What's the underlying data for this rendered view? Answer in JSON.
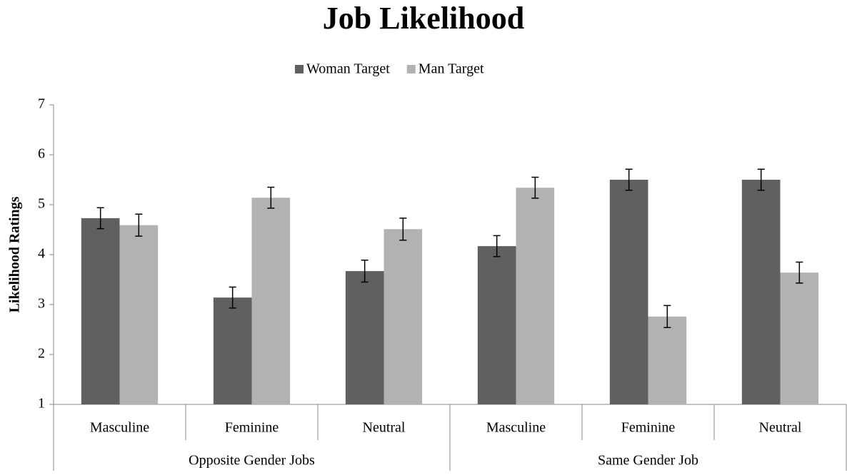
{
  "chart_data": {
    "type": "bar",
    "title": "Job Likelihood",
    "y_label": "Likelihood Ratings",
    "groups": [
      {
        "name": "Opposite Gender Jobs",
        "categories": [
          "Masculine",
          "Feminine",
          "Neutral"
        ]
      },
      {
        "name": "Same Gender Job",
        "categories": [
          "Masculine",
          "Feminine",
          "Neutral"
        ]
      }
    ],
    "series": [
      {
        "name": "Woman Target",
        "color": "#606060",
        "values": [
          4.73,
          3.14,
          3.67,
          4.17,
          5.5,
          5.5
        ],
        "errors": [
          0.21,
          0.21,
          0.22,
          0.21,
          0.21,
          0.21
        ]
      },
      {
        "name": "Man Target",
        "color": "#b2b2b2",
        "values": [
          4.59,
          5.14,
          4.51,
          5.34,
          2.76,
          3.64
        ],
        "errors": [
          0.22,
          0.21,
          0.22,
          0.21,
          0.22,
          0.21
        ]
      }
    ],
    "ylim": [
      1,
      7
    ],
    "yticks": [
      1,
      2,
      3,
      4,
      5,
      6,
      7
    ],
    "legend": "top",
    "grid": false
  }
}
